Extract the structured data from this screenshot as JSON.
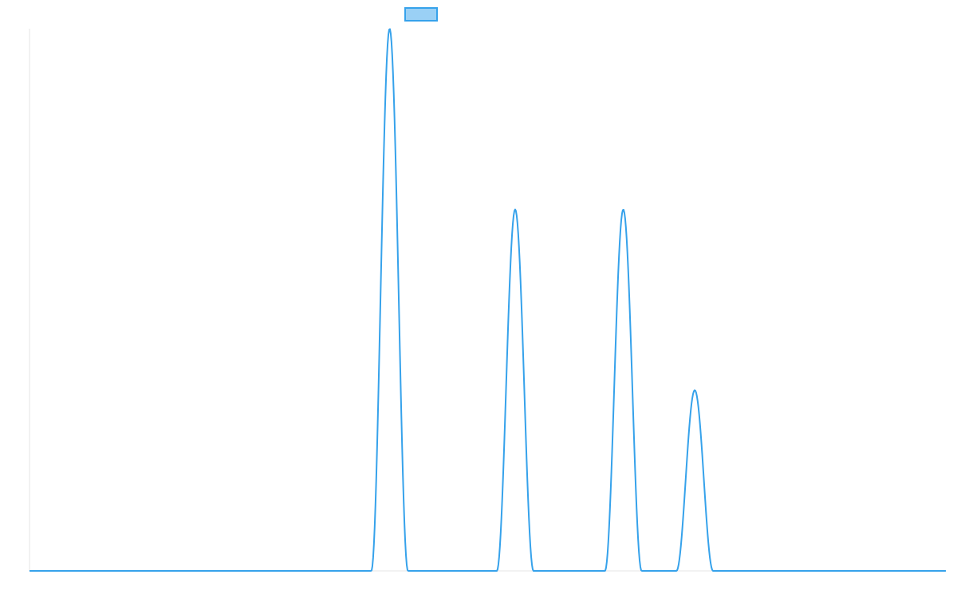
{
  "chart_data": {
    "type": "line",
    "title": "",
    "xlabel": "",
    "ylabel": "",
    "xlim": [
      0,
      100
    ],
    "ylim": [
      0,
      3
    ],
    "grid": false,
    "legend": {
      "placement": "top-center",
      "entries": [
        {
          "label": "",
          "color": "#36a2eb",
          "fill": "#9ad0f5"
        }
      ]
    },
    "series": [
      {
        "color": "#36a2eb",
        "peaks": [
          {
            "center": 39.3,
            "half_width": 2.0,
            "height": 3
          },
          {
            "center": 53.0,
            "half_width": 2.0,
            "height": 2
          },
          {
            "center": 64.8,
            "half_width": 2.0,
            "height": 2
          },
          {
            "center": 72.6,
            "half_width": 2.0,
            "height": 1
          }
        ]
      }
    ]
  }
}
